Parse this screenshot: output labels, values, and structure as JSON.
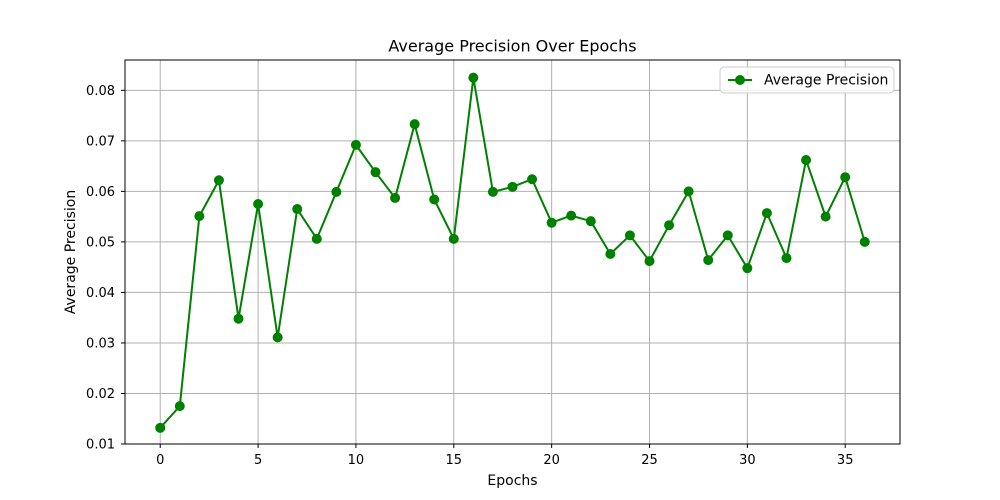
{
  "chart_data": {
    "type": "line",
    "title": "Average Precision Over Epochs",
    "xlabel": "Epochs",
    "ylabel": "Average Precision",
    "xlim": [
      -1.8,
      37.8
    ],
    "ylim": [
      0.01,
      0.086
    ],
    "x_ticks": [
      0,
      5,
      10,
      15,
      20,
      25,
      30,
      35
    ],
    "y_ticks": [
      0.01,
      0.02,
      0.03,
      0.04,
      0.05,
      0.06,
      0.07,
      0.08
    ],
    "grid": true,
    "legend_position": "top-right",
    "series": [
      {
        "name": "Average Precision",
        "color": "#008000",
        "marker": "circle",
        "x": [
          0,
          1,
          2,
          3,
          4,
          5,
          6,
          7,
          8,
          9,
          10,
          11,
          12,
          13,
          14,
          15,
          16,
          17,
          18,
          19,
          20,
          21,
          22,
          23,
          24,
          25,
          26,
          27,
          28,
          29,
          30,
          31,
          32,
          33,
          34,
          35,
          36
        ],
        "values": [
          0.0132,
          0.0175,
          0.0551,
          0.0622,
          0.0348,
          0.0575,
          0.0311,
          0.0565,
          0.0506,
          0.0599,
          0.0692,
          0.0638,
          0.0587,
          0.0733,
          0.0584,
          0.0506,
          0.0825,
          0.0599,
          0.0609,
          0.0624,
          0.0538,
          0.0552,
          0.0541,
          0.0476,
          0.0513,
          0.0462,
          0.0533,
          0.06,
          0.0464,
          0.0513,
          0.0448,
          0.0557,
          0.0468,
          0.0662,
          0.055,
          0.0628,
          0.05
        ]
      }
    ]
  }
}
